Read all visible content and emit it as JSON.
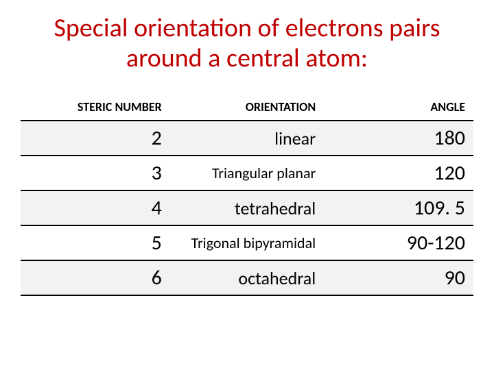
{
  "title": "Special orientation of electrons pairs around a central atom:",
  "table": {
    "headers": {
      "steric": "STERIC NUMBER",
      "orientation": "ORIENTATION",
      "angle": "ANGLE"
    },
    "rows": [
      {
        "steric": "2",
        "orientation": "linear",
        "angle": "180",
        "orient_small": false
      },
      {
        "steric": "3",
        "orientation": "Triangular planar",
        "angle": "120",
        "orient_small": true
      },
      {
        "steric": "4",
        "orientation": "tetrahedral",
        "angle": "109. 5",
        "orient_small": false
      },
      {
        "steric": "5",
        "orientation": "Trigonal bipyramidal",
        "angle": "90-120",
        "orient_small": true
      },
      {
        "steric": "6",
        "orientation": "octahedral",
        "angle": "90",
        "orient_small": false
      }
    ],
    "colors": {
      "title_color": "#c00000",
      "border_color": "#000000",
      "alt_row_bg": "#f2f2f2",
      "background": "#ffffff",
      "text_color": "#000000"
    },
    "font_sizes": {
      "title": 38,
      "header": 18,
      "steric": 30,
      "orientation": 26,
      "orientation_small": 22,
      "angle": 30
    }
  }
}
